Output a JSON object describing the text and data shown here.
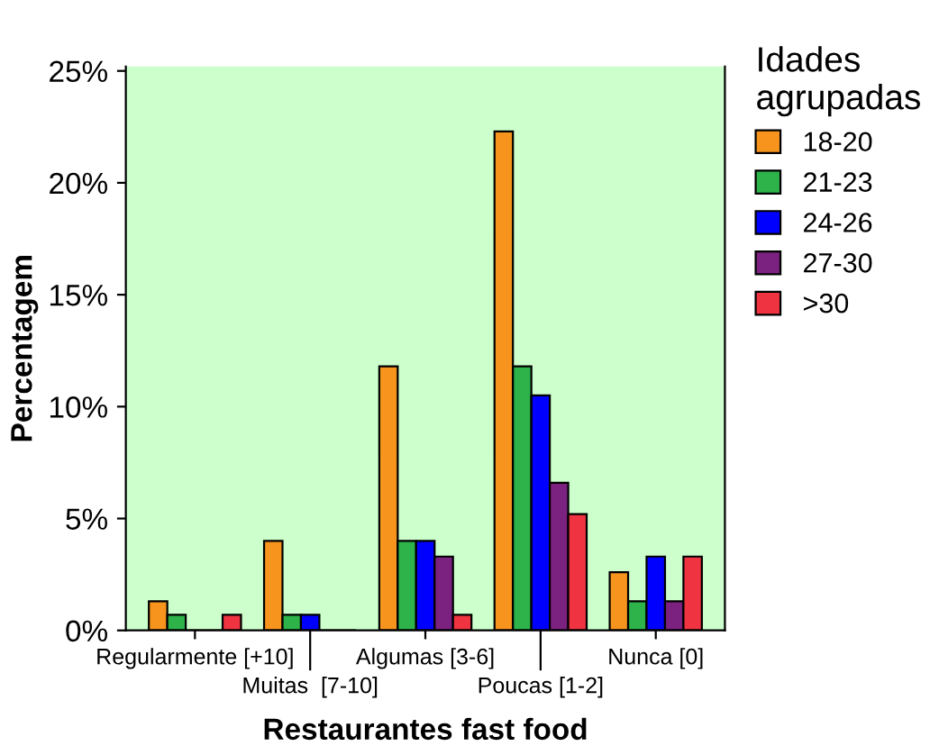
{
  "chart_data": {
    "type": "bar",
    "xlabel": "Restaurantes fast food",
    "ylabel": "Percentagem",
    "legend_title": "Idades\nagrupadas",
    "legend": "top right",
    "categories": [
      "Regularmente [+10]",
      "Muitas  [7-10]",
      "Algumas [3-6]",
      "Poucas [1-2]",
      "Nunca [0]"
    ],
    "series": [
      {
        "name": "18-20",
        "color": "#f7941d",
        "values": [
          1.3,
          4.0,
          11.8,
          22.3,
          2.6
        ]
      },
      {
        "name": "21-23",
        "color": "#2db34a",
        "values": [
          0.7,
          0.7,
          4.0,
          11.8,
          1.3
        ]
      },
      {
        "name": "24-26",
        "color": "#0000ff",
        "values": [
          0,
          0.7,
          4.0,
          10.5,
          3.3
        ]
      },
      {
        "name": "27-30",
        "color": "#7b2180",
        "values": [
          0,
          0,
          3.3,
          6.6,
          1.3
        ]
      },
      {
        "name": ">30",
        "color": "#ef3340",
        "values": [
          0.7,
          0,
          0.7,
          5.2,
          3.3
        ]
      }
    ],
    "ylim": [
      0,
      25.2
    ],
    "yticks": [
      {
        "value": 0,
        "label": "0%"
      },
      {
        "value": 5,
        "label": "5%"
      },
      {
        "value": 10,
        "label": "10%"
      },
      {
        "value": 15,
        "label": "15%"
      },
      {
        "value": 20,
        "label": "20%"
      },
      {
        "value": 25,
        "label": "25%"
      }
    ],
    "grid": false
  }
}
